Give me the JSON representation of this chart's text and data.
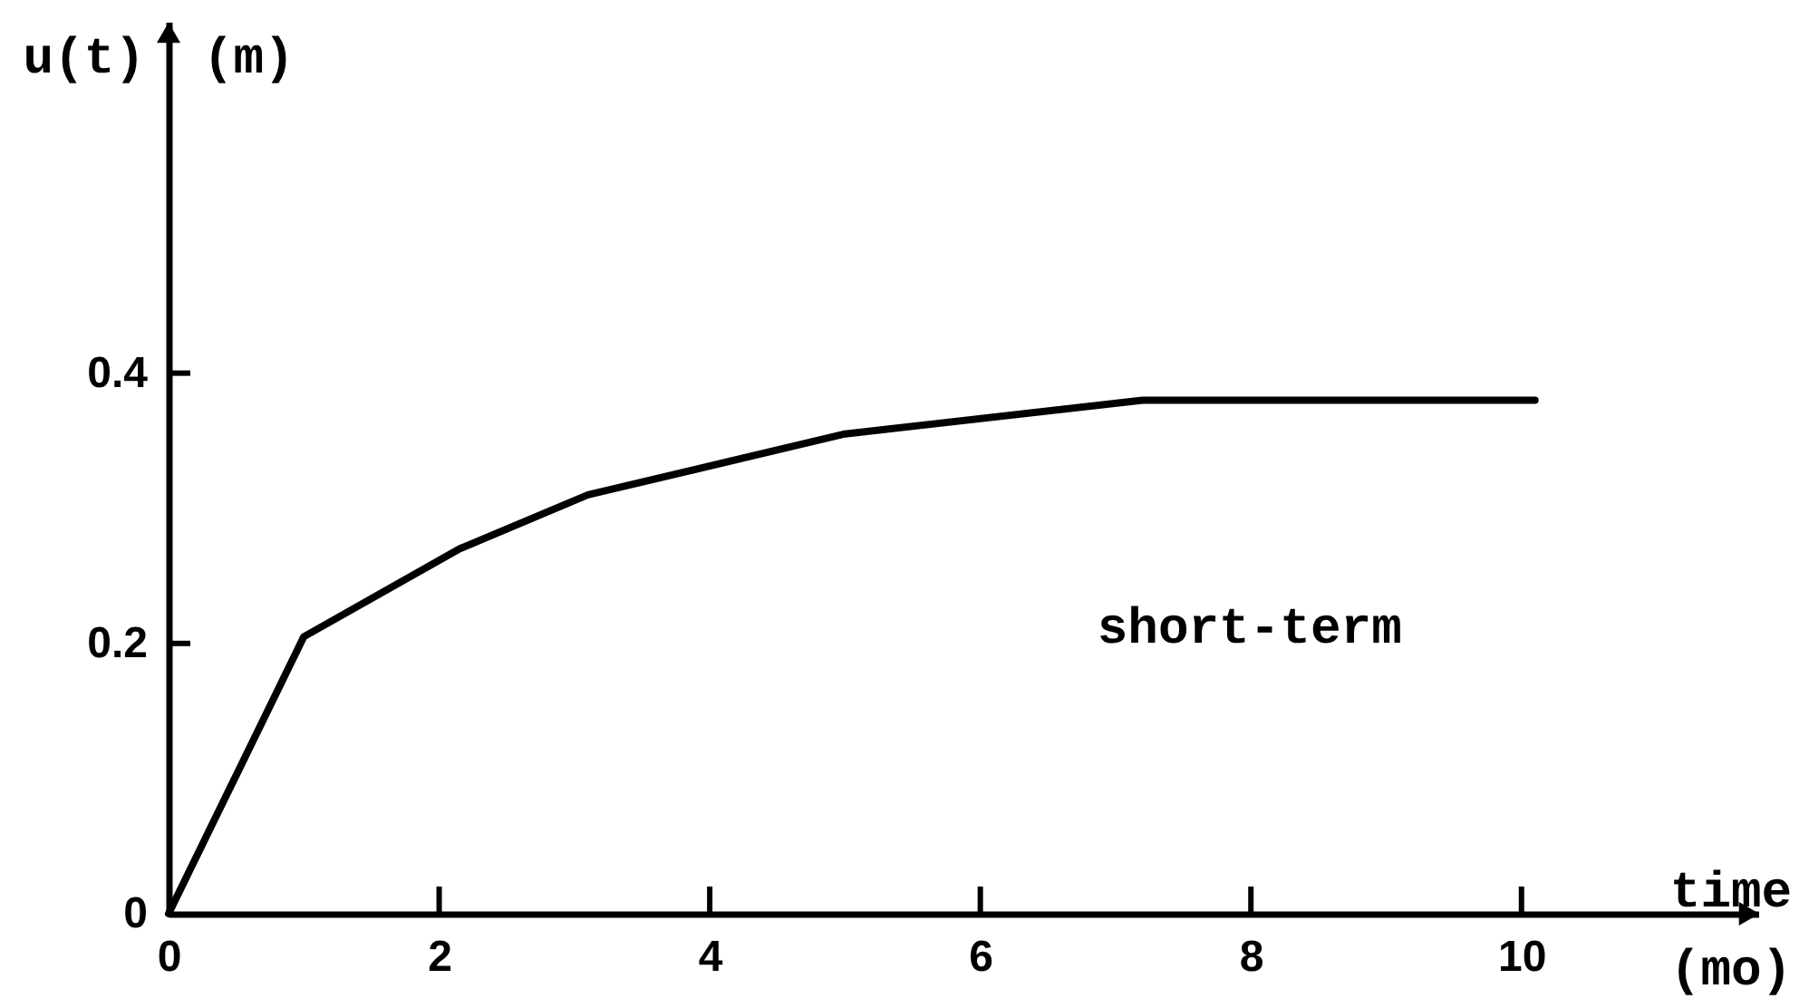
{
  "chart_data": {
    "type": "line",
    "xlabel": "time (mo)",
    "ylabel": "u(t) (m)",
    "annotations": [
      "short-term"
    ],
    "x": [
      0,
      1.0,
      2.15,
      3.1,
      5.0,
      7.2,
      10.1
    ],
    "series": [
      {
        "color": "#000000",
        "values": [
          0,
          0.205,
          0.27,
          0.31,
          0.355,
          0.38,
          0.38
        ]
      }
    ],
    "xlim": [
      0,
      11.75
    ],
    "ylim": [
      0,
      0.66
    ],
    "xticks": [
      0,
      2,
      4,
      6,
      8,
      10
    ],
    "yticks": [
      0,
      0.2,
      0.4
    ],
    "grid": false,
    "marker": "none",
    "line_style": "solid"
  }
}
